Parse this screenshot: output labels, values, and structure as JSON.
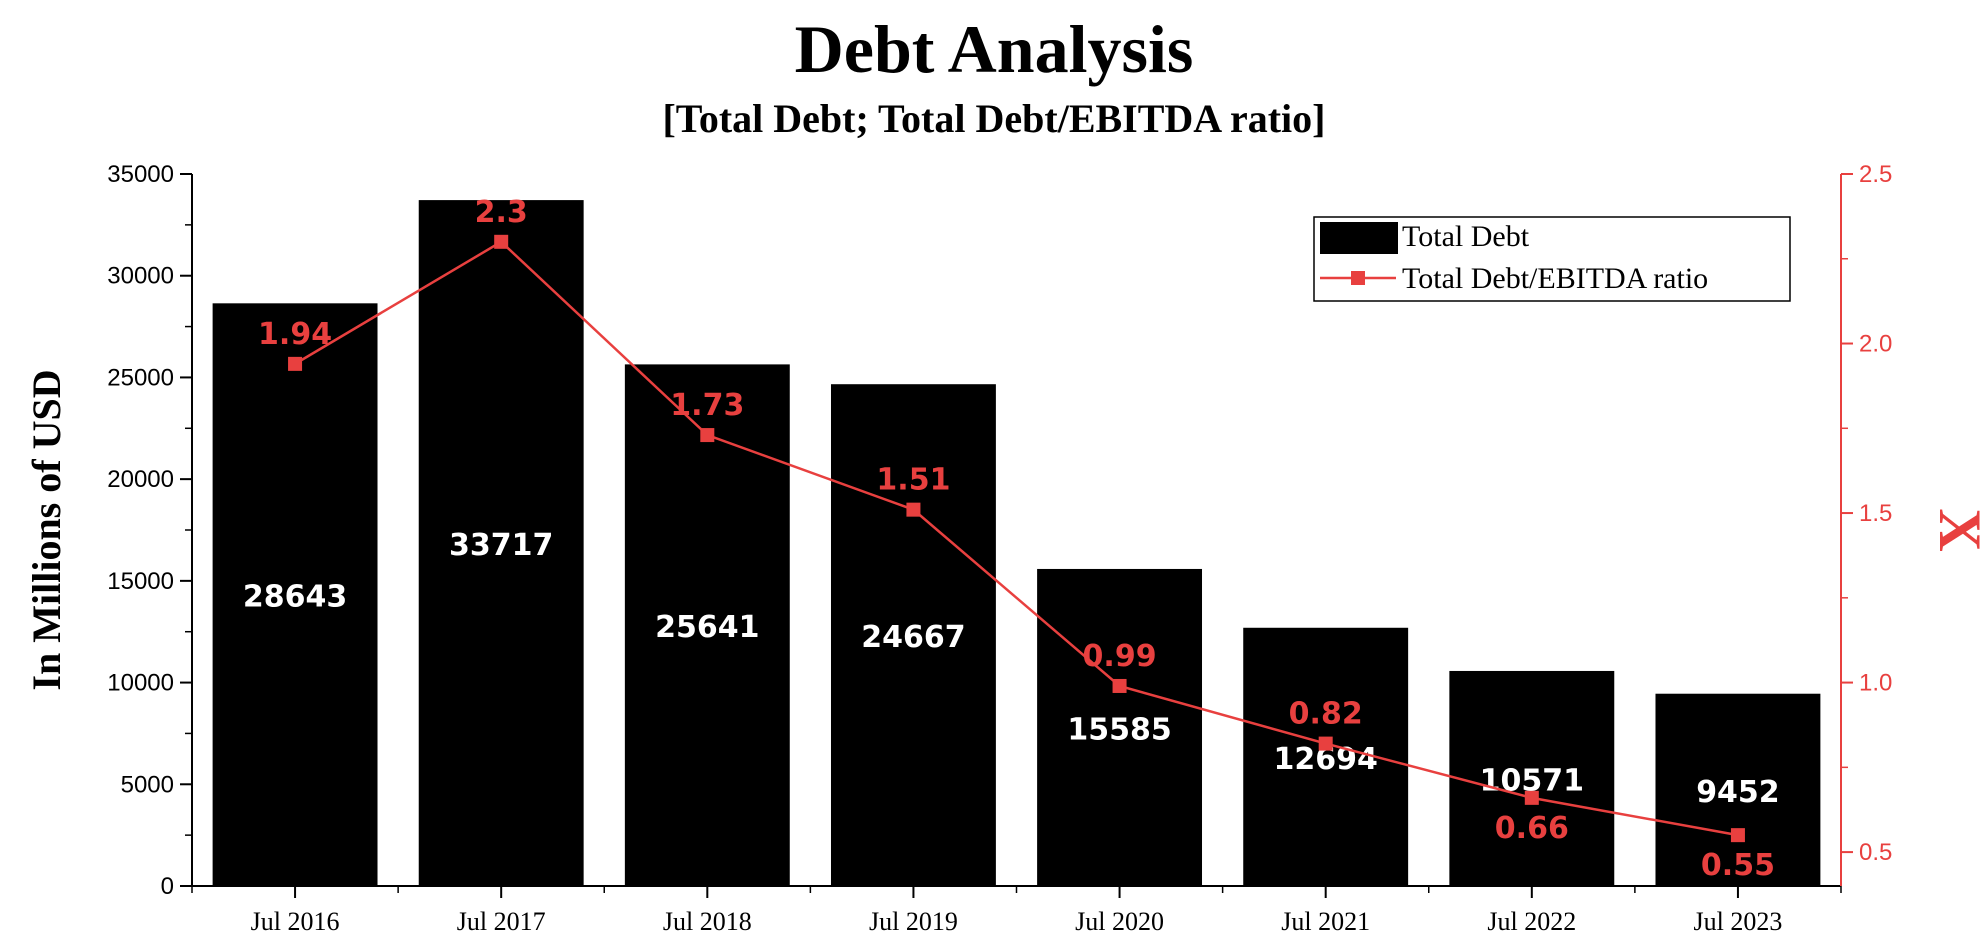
{
  "chart_data": {
    "type": "bar",
    "title": "Debt Analysis",
    "subtitle": "[Total Debt; Total Debt/EBITDA ratio]",
    "categories": [
      "Jul 2016",
      "Jul 2017",
      "Jul 2018",
      "Jul 2019",
      "Jul 2020",
      "Jul 2021",
      "Jul 2022",
      "Jul 2023"
    ],
    "series": [
      {
        "name": "Total Debt",
        "type": "bar",
        "axis": "left",
        "color": "#000000",
        "label_color": "#ffffff",
        "values": [
          28643,
          33717,
          25641,
          24667,
          15585,
          12694,
          10571,
          9452
        ],
        "value_labels": [
          "28643",
          "33717",
          "25641",
          "24667",
          "15585",
          "12694",
          "10571",
          "9452"
        ]
      },
      {
        "name": "Total Debt/EBITDA ratio",
        "type": "line",
        "axis": "right",
        "color": "#e8403f",
        "marker": "square",
        "values": [
          1.94,
          2.3,
          1.73,
          1.51,
          0.99,
          0.82,
          0.66,
          0.55
        ],
        "value_labels": [
          "1.94",
          "2.3",
          "1.73",
          "1.51",
          "0.99",
          "0.82",
          "0.66",
          "0.55"
        ]
      }
    ],
    "ylabel": "In Millions of USD",
    "ylabel_right": "X",
    "ylim": [
      0,
      35000
    ],
    "ylim_right": [
      0.4,
      2.5
    ],
    "yticks": [
      0,
      5000,
      10000,
      15000,
      20000,
      25000,
      30000,
      35000
    ],
    "yticks_right": [
      0.5,
      1.0,
      1.5,
      2.0,
      2.5
    ],
    "ytick_labels": [
      "0",
      "5000",
      "10000",
      "15000",
      "20000",
      "25000",
      "30000",
      "35000"
    ],
    "ytick_labels_right": [
      "0.5",
      "1.0",
      "1.5",
      "2.0",
      "2.5"
    ],
    "grid": false,
    "legend_position": "top-right",
    "right_axis_color": "#e8403f"
  }
}
